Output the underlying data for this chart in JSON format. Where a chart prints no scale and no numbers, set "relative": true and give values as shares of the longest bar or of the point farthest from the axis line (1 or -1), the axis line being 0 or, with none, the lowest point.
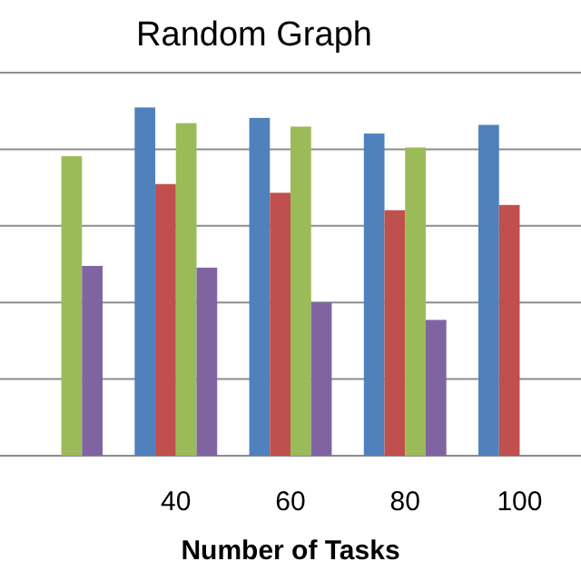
{
  "chart_data": {
    "type": "bar",
    "title": "Random Graph",
    "xlabel": "Number of Tasks",
    "relative": true,
    "grid": true,
    "categories": [
      null,
      "40",
      "60",
      "80",
      "100"
    ],
    "series": [
      {
        "color": "#4f81bd",
        "values": [
          null,
          1,
          0.97,
          0.925,
          0.95
        ]
      },
      {
        "color": "#c0504d",
        "values": [
          null,
          0.78,
          0.755,
          0.705,
          0.72
        ]
      },
      {
        "color": "#9bbb59",
        "values": [
          0.86,
          0.955,
          0.945,
          0.885,
          null
        ]
      },
      {
        "color": "#8064a2",
        "values": [
          0.545,
          0.54,
          0.44,
          0.39,
          null
        ]
      }
    ]
  }
}
